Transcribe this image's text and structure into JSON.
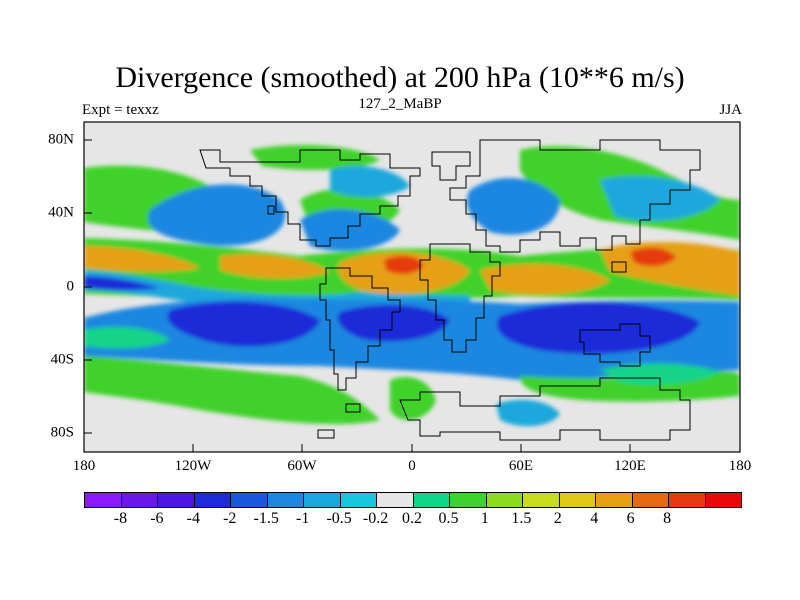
{
  "title": "Divergence (smoothed) at 200 hPa (10**6 m/s)",
  "left_label": "Expt = texxz",
  "center_label": "127_2_MaBP",
  "right_label": "JJA",
  "lon_ticks": [
    "180",
    "120W",
    "60W",
    "0",
    "60E",
    "120E",
    "180"
  ],
  "lat_ticks": [
    "80N",
    "40N",
    "0",
    "40S",
    "80S"
  ],
  "colorbar": {
    "colors": [
      "#8a1aff",
      "#6a17e8",
      "#4b16e0",
      "#1f2ad8",
      "#1b57dc",
      "#1e87e0",
      "#1aa8dc",
      "#18c6e0",
      "#e6e6e6",
      "#12d38a",
      "#3fd22c",
      "#8bdc1e",
      "#c7dc1c",
      "#e0c818",
      "#e6a012",
      "#e66b10",
      "#e63a0f",
      "#e60a0a"
    ],
    "labels": [
      "-8",
      "-6",
      "-4",
      "-2",
      "-1.5",
      "-1",
      "-0.5",
      "-0.2",
      "0.2",
      "0.5",
      "1",
      "1.5",
      "2",
      "4",
      "6",
      "8"
    ]
  },
  "colors": {
    "background": "#ffffff",
    "neutral": "#e6e6e6",
    "coast": "#000000"
  }
}
